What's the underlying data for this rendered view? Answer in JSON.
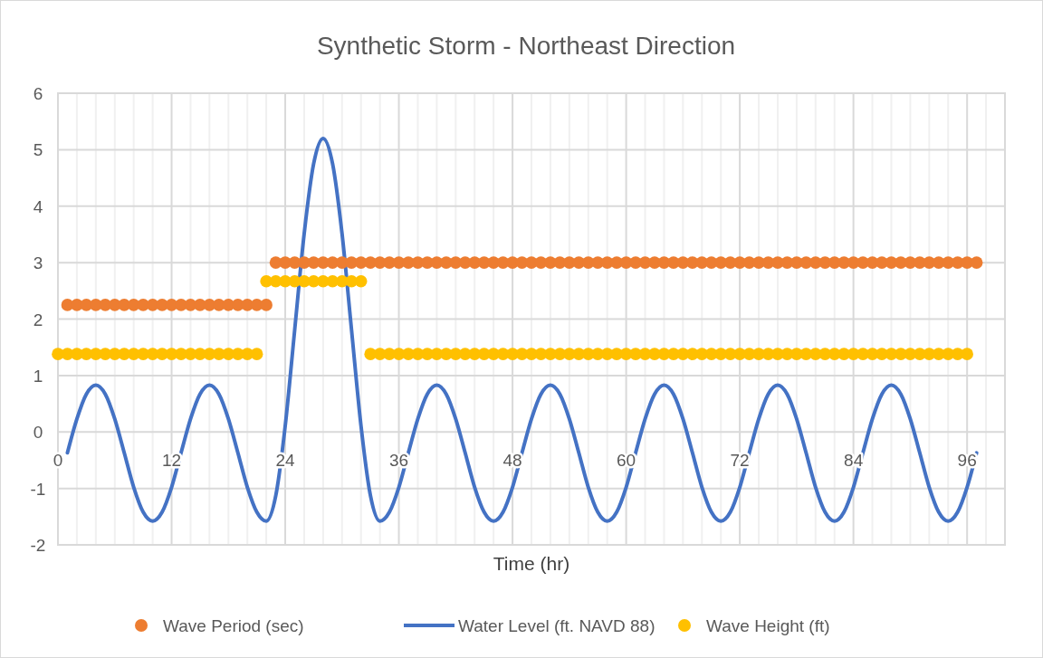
{
  "chart_data": {
    "type": "scatter",
    "title": "Synthetic Storm - Northeast Direction",
    "xlabel": "Time (hr)",
    "xlim": [
      0,
      100
    ],
    "xticks": [
      0,
      {
        "value": 2,
        "label": null
      },
      {
        "value": 4,
        "label": null
      },
      {
        "value": 6,
        "label": null
      },
      {
        "value": 8,
        "label": null
      },
      {
        "value": 10,
        "label": null
      },
      12,
      {
        "value": 14,
        "label": null
      },
      {
        "value": 16,
        "label": null
      },
      {
        "value": 18,
        "label": null
      },
      {
        "value": 20,
        "label": null
      },
      {
        "value": 22,
        "label": null
      },
      24,
      {
        "value": 26,
        "label": null
      },
      {
        "value": 28,
        "label": null
      },
      {
        "value": 30,
        "label": null
      },
      {
        "value": 32,
        "label": null
      },
      {
        "value": 34,
        "label": null
      },
      36,
      {
        "value": 38,
        "label": null
      },
      {
        "value": 40,
        "label": null
      },
      {
        "value": 42,
        "label": null
      },
      {
        "value": 44,
        "label": null
      },
      {
        "value": 46,
        "label": null
      },
      48,
      {
        "value": 50,
        "label": null
      },
      {
        "value": 52,
        "label": null
      },
      {
        "value": 54,
        "label": null
      },
      {
        "value": 56,
        "label": null
      },
      {
        "value": 58,
        "label": null
      },
      60,
      {
        "value": 62,
        "label": null
      },
      {
        "value": 64,
        "label": null
      },
      {
        "value": 66,
        "label": null
      },
      {
        "value": 68,
        "label": null
      },
      {
        "value": 70,
        "label": null
      },
      72,
      {
        "value": 74,
        "label": null
      },
      {
        "value": 76,
        "label": null
      },
      {
        "value": 78,
        "label": null
      },
      {
        "value": 80,
        "label": null
      },
      {
        "value": 82,
        "label": null
      },
      84,
      {
        "value": 86,
        "label": null
      },
      {
        "value": 88,
        "label": null
      },
      {
        "value": 90,
        "label": null
      },
      {
        "value": 92,
        "label": null
      },
      {
        "value": 94,
        "label": null
      },
      96,
      {
        "value": 98,
        "label": null
      }
    ],
    "ylim": [
      -2,
      6
    ],
    "yticks": [
      -2,
      -1,
      0,
      1,
      2,
      3,
      4,
      5,
      6
    ],
    "grid": true,
    "legend": "bottom",
    "marker": "circle",
    "series": [
      {
        "name": "Wave Period (sec)",
        "color": "#ed7d31",
        "x": [
          1,
          2,
          3,
          4,
          5,
          6,
          7,
          8,
          9,
          10,
          11,
          12,
          13,
          14,
          15,
          16,
          17,
          18,
          19,
          20,
          21,
          22,
          23,
          24,
          25,
          26,
          27,
          28,
          29,
          30,
          31,
          32,
          33,
          34,
          35,
          36,
          37,
          38,
          39,
          40,
          41,
          42,
          43,
          44,
          45,
          46,
          47,
          48,
          49,
          50,
          51,
          52,
          53,
          54,
          55,
          56,
          57,
          58,
          59,
          60,
          61,
          62,
          63,
          64,
          65,
          66,
          67,
          68,
          69,
          70,
          71,
          72,
          73,
          74,
          75,
          76,
          77,
          78,
          79,
          80,
          81,
          82,
          83,
          84,
          85,
          86,
          87,
          88,
          89,
          90,
          91,
          92,
          93,
          94,
          95,
          96,
          97
        ],
        "values": [
          2.25,
          2.25,
          2.25,
          2.25,
          2.25,
          2.25,
          2.25,
          2.25,
          2.25,
          2.25,
          2.25,
          2.25,
          2.25,
          2.25,
          2.25,
          2.25,
          2.25,
          2.25,
          2.25,
          2.25,
          2.25,
          2.25,
          3,
          3,
          3,
          3,
          3,
          3,
          3,
          3,
          3,
          3,
          3,
          3,
          3,
          3,
          3,
          3,
          3,
          3,
          3,
          3,
          3,
          3,
          3,
          3,
          3,
          3,
          3,
          3,
          3,
          3,
          3,
          3,
          3,
          3,
          3,
          3,
          3,
          3,
          3,
          3,
          3,
          3,
          3,
          3,
          3,
          3,
          3,
          3,
          3,
          3,
          3,
          3,
          3,
          3,
          3,
          3,
          3,
          3,
          3,
          3,
          3,
          3,
          3,
          3,
          3,
          3,
          3,
          3,
          3,
          3,
          3,
          3,
          3,
          3,
          3
        ]
      },
      {
        "name": "Water Level (ft. NAVD 88)",
        "type": "line",
        "marker": "none",
        "line_style": "solid",
        "color": "#4472c4",
        "x": [
          1,
          2,
          3,
          4,
          5,
          6,
          7,
          8,
          9,
          10,
          11,
          12,
          13,
          14,
          15,
          16,
          17,
          18,
          19,
          20,
          21,
          22,
          23,
          24,
          25,
          26,
          27,
          28,
          29,
          30,
          31,
          32,
          33,
          34,
          35,
          36,
          37,
          38,
          39,
          40,
          41,
          42,
          43,
          44,
          45,
          46,
          47,
          48,
          49,
          50,
          51,
          52,
          53,
          54,
          55,
          56,
          57,
          58,
          59,
          60,
          61,
          62,
          63,
          64,
          65,
          66,
          67,
          68,
          69,
          70,
          71,
          72,
          73,
          74,
          75,
          76,
          77,
          78,
          79,
          80,
          81,
          82,
          83,
          84,
          85,
          86,
          87,
          88,
          89,
          90,
          91,
          92,
          93,
          94,
          95,
          96,
          97
        ],
        "values": [
          -0.37,
          0.23,
          0.67,
          0.83,
          0.67,
          0.23,
          -0.37,
          -0.98,
          -1.42,
          -1.58,
          -1.42,
          -0.98,
          -0.37,
          0.23,
          0.67,
          0.83,
          0.67,
          0.23,
          -0.37,
          -0.98,
          -1.42,
          -1.58,
          -1.13,
          0.11,
          1.81,
          3.51,
          4.75,
          5.2,
          4.75,
          3.51,
          1.81,
          0.11,
          -1.13,
          -1.58,
          -1.42,
          -0.98,
          -0.37,
          0.23,
          0.67,
          0.83,
          0.67,
          0.23,
          -0.37,
          -0.98,
          -1.42,
          -1.58,
          -1.42,
          -0.98,
          -0.37,
          0.23,
          0.67,
          0.83,
          0.67,
          0.23,
          -0.37,
          -0.98,
          -1.42,
          -1.58,
          -1.42,
          -0.98,
          -0.37,
          0.23,
          0.67,
          0.83,
          0.67,
          0.23,
          -0.37,
          -0.98,
          -1.42,
          -1.58,
          -1.42,
          -0.98,
          -0.37,
          0.23,
          0.67,
          0.83,
          0.67,
          0.23,
          -0.37,
          -0.98,
          -1.42,
          -1.58,
          -1.42,
          -0.98,
          -0.37,
          0.23,
          0.67,
          0.83,
          0.67,
          0.23,
          -0.37,
          -0.98,
          -1.42,
          -1.58,
          -1.42,
          -0.98,
          -0.37
        ]
      },
      {
        "name": "Wave Height (ft)",
        "color": "#ffc000",
        "x": [
          0,
          1,
          2,
          3,
          4,
          5,
          6,
          7,
          8,
          9,
          10,
          11,
          12,
          13,
          14,
          15,
          16,
          17,
          18,
          19,
          20,
          21,
          22,
          23,
          24,
          25,
          26,
          27,
          28,
          29,
          30,
          31,
          32,
          33,
          34,
          35,
          36,
          37,
          38,
          39,
          40,
          41,
          42,
          43,
          44,
          45,
          46,
          47,
          48,
          49,
          50,
          51,
          52,
          53,
          54,
          55,
          56,
          57,
          58,
          59,
          60,
          61,
          62,
          63,
          64,
          65,
          66,
          67,
          68,
          69,
          70,
          71,
          72,
          73,
          74,
          75,
          76,
          77,
          78,
          79,
          80,
          81,
          82,
          83,
          84,
          85,
          86,
          87,
          88,
          89,
          90,
          91,
          92,
          93,
          94,
          95,
          96
        ],
        "values": [
          1.38,
          1.38,
          1.38,
          1.38,
          1.38,
          1.38,
          1.38,
          1.38,
          1.38,
          1.38,
          1.38,
          1.38,
          1.38,
          1.38,
          1.38,
          1.38,
          1.38,
          1.38,
          1.38,
          1.38,
          1.38,
          1.38,
          2.67,
          2.67,
          2.67,
          2.67,
          2.67,
          2.67,
          2.67,
          2.67,
          2.67,
          2.67,
          2.67,
          1.38,
          1.38,
          1.38,
          1.38,
          1.38,
          1.38,
          1.38,
          1.38,
          1.38,
          1.38,
          1.38,
          1.38,
          1.38,
          1.38,
          1.38,
          1.38,
          1.38,
          1.38,
          1.38,
          1.38,
          1.38,
          1.38,
          1.38,
          1.38,
          1.38,
          1.38,
          1.38,
          1.38,
          1.38,
          1.38,
          1.38,
          1.38,
          1.38,
          1.38,
          1.38,
          1.38,
          1.38,
          1.38,
          1.38,
          1.38,
          1.38,
          1.38,
          1.38,
          1.38,
          1.38,
          1.38,
          1.38,
          1.38,
          1.38,
          1.38,
          1.38,
          1.38,
          1.38,
          1.38,
          1.38,
          1.38,
          1.38,
          1.38,
          1.38,
          1.38,
          1.38,
          1.38,
          1.38,
          1.38
        ]
      }
    ]
  }
}
